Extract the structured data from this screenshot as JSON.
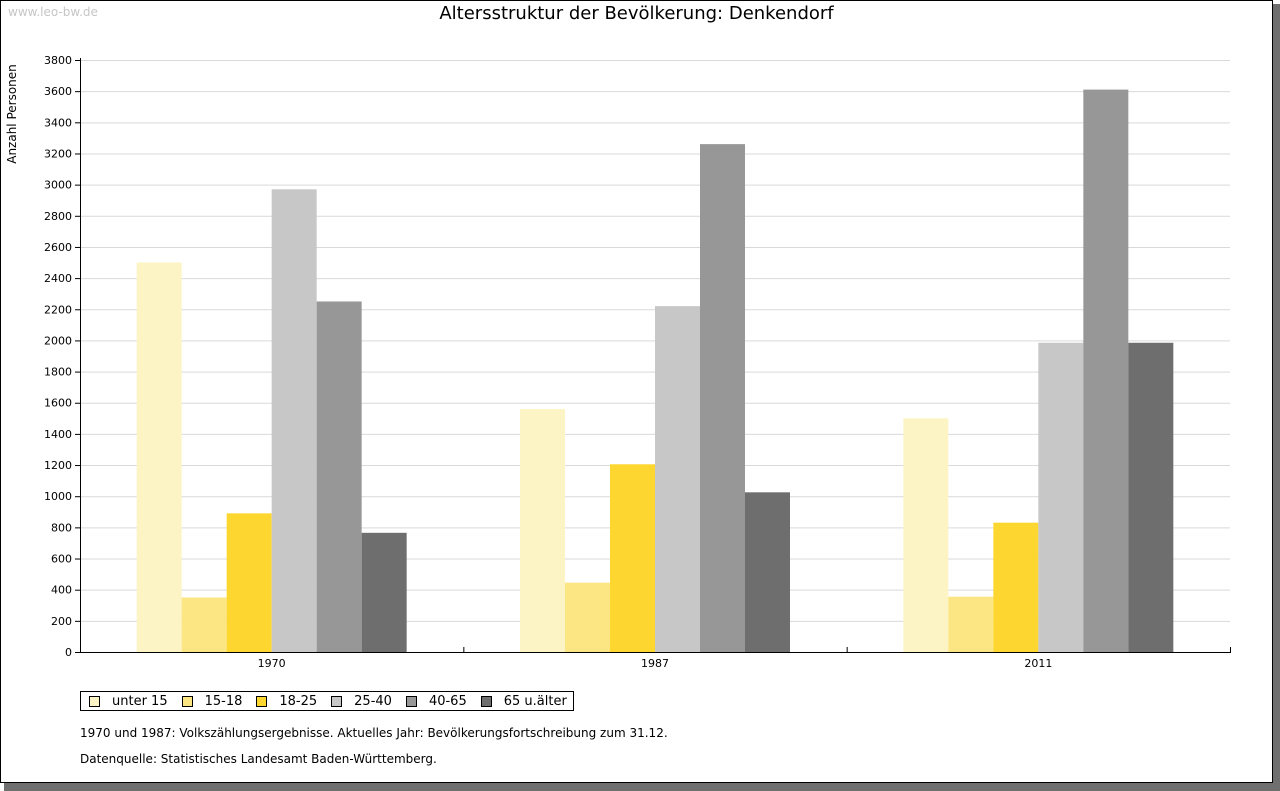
{
  "watermark": "www.leo-bw.de",
  "chart_data": {
    "type": "bar",
    "title": "Altersstruktur der Bevölkerung: Denkendorf",
    "ylabel": "Anzahl Personen",
    "xlabel": "",
    "ylim": [
      0,
      3800
    ],
    "yticks": [
      0,
      200,
      400,
      600,
      800,
      1000,
      1200,
      1400,
      1600,
      1800,
      2000,
      2200,
      2400,
      2600,
      2800,
      3000,
      3200,
      3400,
      3600,
      3800
    ],
    "grid": true,
    "legend_position": "bottom-left",
    "categories": [
      "1970",
      "1987",
      "2011"
    ],
    "series": [
      {
        "name": "unter 15",
        "color": "#fcf4c4",
        "values": [
          2500,
          1560,
          1500
        ]
      },
      {
        "name": "15-18",
        "color": "#fce683",
        "values": [
          350,
          445,
          355
        ]
      },
      {
        "name": "18-25",
        "color": "#fdd62f",
        "values": [
          890,
          1205,
          830
        ]
      },
      {
        "name": "25-40",
        "color": "#c7c7c7",
        "values": [
          2970,
          2220,
          1985
        ]
      },
      {
        "name": "40-65",
        "color": "#979797",
        "values": [
          2250,
          3260,
          3610
        ]
      },
      {
        "name": "65 u.älter",
        "color": "#6e6e6e",
        "values": [
          765,
          1025,
          1985
        ]
      }
    ]
  },
  "notes": {
    "line1": "1970 und 1987: Volkszählungsergebnisse. Aktuelles Jahr: Bevölkerungsfortschreibung zum 31.12.",
    "line2": "Datenquelle: Statistisches Landesamt Baden-Württemberg."
  }
}
